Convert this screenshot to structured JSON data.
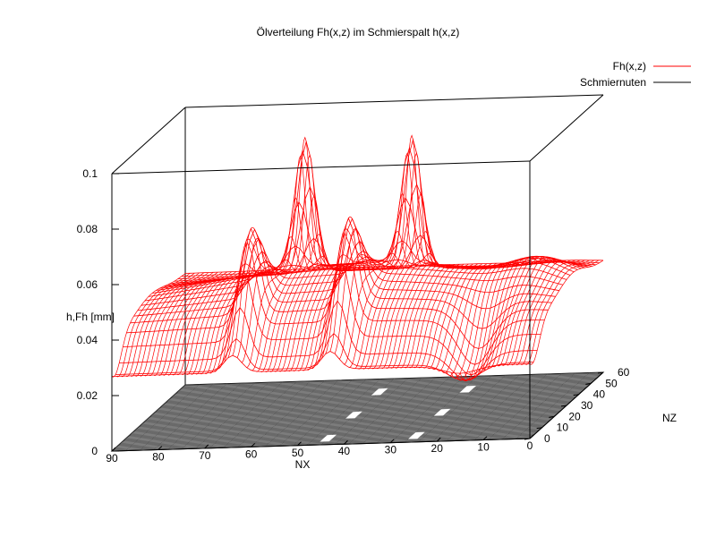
{
  "chart_data": {
    "type": "surface",
    "title": "Ölverteilung Fh(x,z) im Schmierspalt h(x,z)",
    "xlabel": "NX",
    "ylabel": "NZ",
    "zlabel": "h,Fh [mm]",
    "x_ticks": [
      "90",
      "80",
      "70",
      "60",
      "50",
      "40",
      "30",
      "20",
      "10",
      "0"
    ],
    "y_ticks": [
      "0",
      "10",
      "20",
      "30",
      "40",
      "50",
      "60"
    ],
    "z_ticks": [
      "0",
      "0.02",
      "0.04",
      "0.06",
      "0.08",
      "0.1"
    ],
    "xlim": [
      0,
      90
    ],
    "ylim": [
      0,
      60
    ],
    "zlim": [
      0,
      0.1
    ],
    "legend_position": "top-right",
    "series": [
      {
        "name": "Fh(x,z)",
        "color": "#ff0000"
      },
      {
        "name": "Schmiernuten",
        "color": "#000000"
      }
    ],
    "surface_features": {
      "baseline": 0.04,
      "ridges": [
        {
          "x": 64,
          "z": 0.071
        },
        {
          "x": 43,
          "z": 0.073
        },
        {
          "x": 60,
          "z": 0.088
        },
        {
          "x": 37,
          "z": 0.087
        }
      ],
      "slots_white": [
        {
          "x_center": 45,
          "z_range": [
            3,
            9
          ]
        },
        {
          "x_center": 45,
          "z_range": [
            24,
            30
          ]
        },
        {
          "x_center": 45,
          "z_range": [
            45,
            51
          ]
        },
        {
          "x_center": 26,
          "z_range": [
            3,
            9
          ]
        },
        {
          "x_center": 26,
          "z_range": [
            24,
            30
          ]
        },
        {
          "x_center": 26,
          "z_range": [
            45,
            51
          ]
        }
      ]
    }
  }
}
